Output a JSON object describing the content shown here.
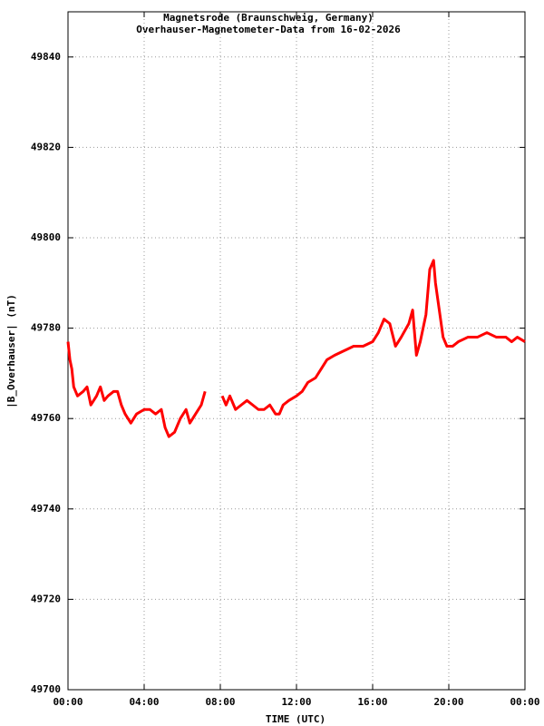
{
  "chart_data": {
    "type": "line",
    "title": "Magnetsrode (Braunschweig, Germany)",
    "subtitle": "Overhauser-Magnetometer-Data from 16-02-2026",
    "x_label": "TIME (UTC)",
    "y_label": "|B_Overhauser| (nT)",
    "xlim": [
      0,
      24
    ],
    "xticks": [
      {
        "value": 0,
        "label": "00:00"
      },
      {
        "value": 4,
        "label": "04:00"
      },
      {
        "value": 8,
        "label": "08:00"
      },
      {
        "value": 12,
        "label": "12:00"
      },
      {
        "value": 16,
        "label": "16:00"
      },
      {
        "value": 20,
        "label": "20:00"
      },
      {
        "value": 24,
        "label": "00:00"
      }
    ],
    "ylim": [
      49700,
      49850
    ],
    "yticks": [
      49700,
      49720,
      49740,
      49760,
      49780,
      49800,
      49820,
      49840
    ],
    "grid": true,
    "x": [
      0.0,
      0.1,
      0.2,
      0.3,
      0.5,
      0.8,
      1.0,
      1.2,
      1.5,
      1.7,
      1.9,
      2.1,
      2.4,
      2.6,
      2.8,
      3.0,
      3.3,
      3.6,
      4.0,
      4.3,
      4.6,
      4.9,
      5.1,
      5.3,
      5.6,
      5.9,
      6.2,
      6.4,
      6.7,
      7.0,
      7.2,
      7.6,
      8.1,
      8.3,
      8.5,
      8.8,
      9.1,
      9.4,
      9.7,
      10.0,
      10.3,
      10.6,
      10.9,
      11.1,
      11.3,
      11.6,
      12.0,
      12.3,
      12.6,
      13.0,
      13.3,
      13.6,
      14.0,
      14.5,
      15.0,
      15.5,
      16.0,
      16.3,
      16.6,
      16.9,
      17.2,
      17.5,
      17.9,
      18.1,
      18.3,
      18.5,
      18.8,
      19.0,
      19.2,
      19.3,
      19.5,
      19.7,
      19.9,
      20.2,
      20.5,
      21.0,
      21.5,
      22.0,
      22.5,
      23.0,
      23.3,
      23.6,
      24.0
    ],
    "series": [
      {
        "name": "B_Overhauser",
        "color": "#ff0000",
        "values": [
          49777,
          49773,
          49771,
          49767,
          49765,
          49766,
          49767,
          49763,
          49765,
          49767,
          49764,
          49765,
          49766,
          49766,
          49763,
          49761,
          49759,
          49761,
          49762,
          49762,
          49761,
          49762,
          49758,
          49756,
          49757,
          49760,
          49762,
          49759,
          49761,
          49763,
          49766,
          null,
          49765,
          49763,
          49765,
          49762,
          49763,
          49764,
          49763,
          49762,
          49762,
          49763,
          49761,
          49761,
          49763,
          49764,
          49765,
          49766,
          49768,
          49769,
          49771,
          49773,
          49774,
          49775,
          49776,
          49776,
          49777,
          49779,
          49782,
          49781,
          49776,
          49778,
          49781,
          49784,
          49774,
          49777,
          49783,
          49793,
          49795,
          49790,
          49784,
          49778,
          49776,
          49776,
          49777,
          49778,
          49778,
          49779,
          49778,
          49778,
          49777,
          49778,
          49777
        ]
      }
    ]
  }
}
